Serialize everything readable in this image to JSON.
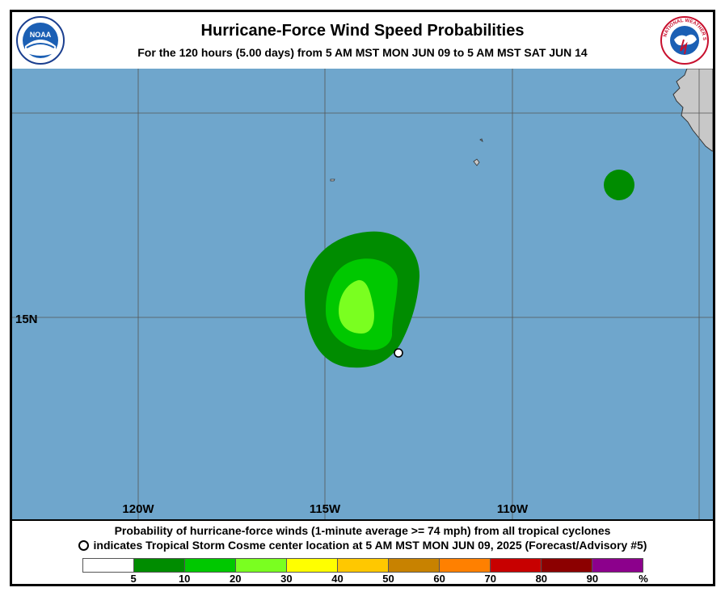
{
  "header": {
    "title": "Hurricane-Force Wind Speed Probabilities",
    "subtitle": "For the 120 hours (5.00 days) from 5 AM MST MON JUN 09 to 5 AM MST SAT JUN 14"
  },
  "logos": {
    "left": "noaa-logo",
    "left_text": "NOAA",
    "right": "nws-logo",
    "right_text": "NATIONAL WEATHER SERVICE"
  },
  "map": {
    "lat_labels": [
      "15N"
    ],
    "lon_labels": [
      "120W",
      "115W",
      "110W"
    ],
    "colors": {
      "ocean": "#6fa6cc",
      "land": "#c8c8c8",
      "grid": "#555555"
    }
  },
  "footer": {
    "line1": "Probability of hurricane-force winds (1-minute average >= 74 mph) from all tropical cyclones",
    "line2": "indicates Tropical Storm Cosme center location at 5 AM MST MON JUN 09, 2025 (Forecast/Advisory #5)"
  },
  "legend": {
    "colors": [
      "#ffffff",
      "#008c00",
      "#00c800",
      "#7aff20",
      "#ffff00",
      "#ffc800",
      "#c88200",
      "#ff8000",
      "#c80000",
      "#8c0000",
      "#8c008c"
    ],
    "labels": [
      "5",
      "10",
      "20",
      "30",
      "40",
      "50",
      "60",
      "70",
      "80",
      "90",
      "%"
    ]
  }
}
